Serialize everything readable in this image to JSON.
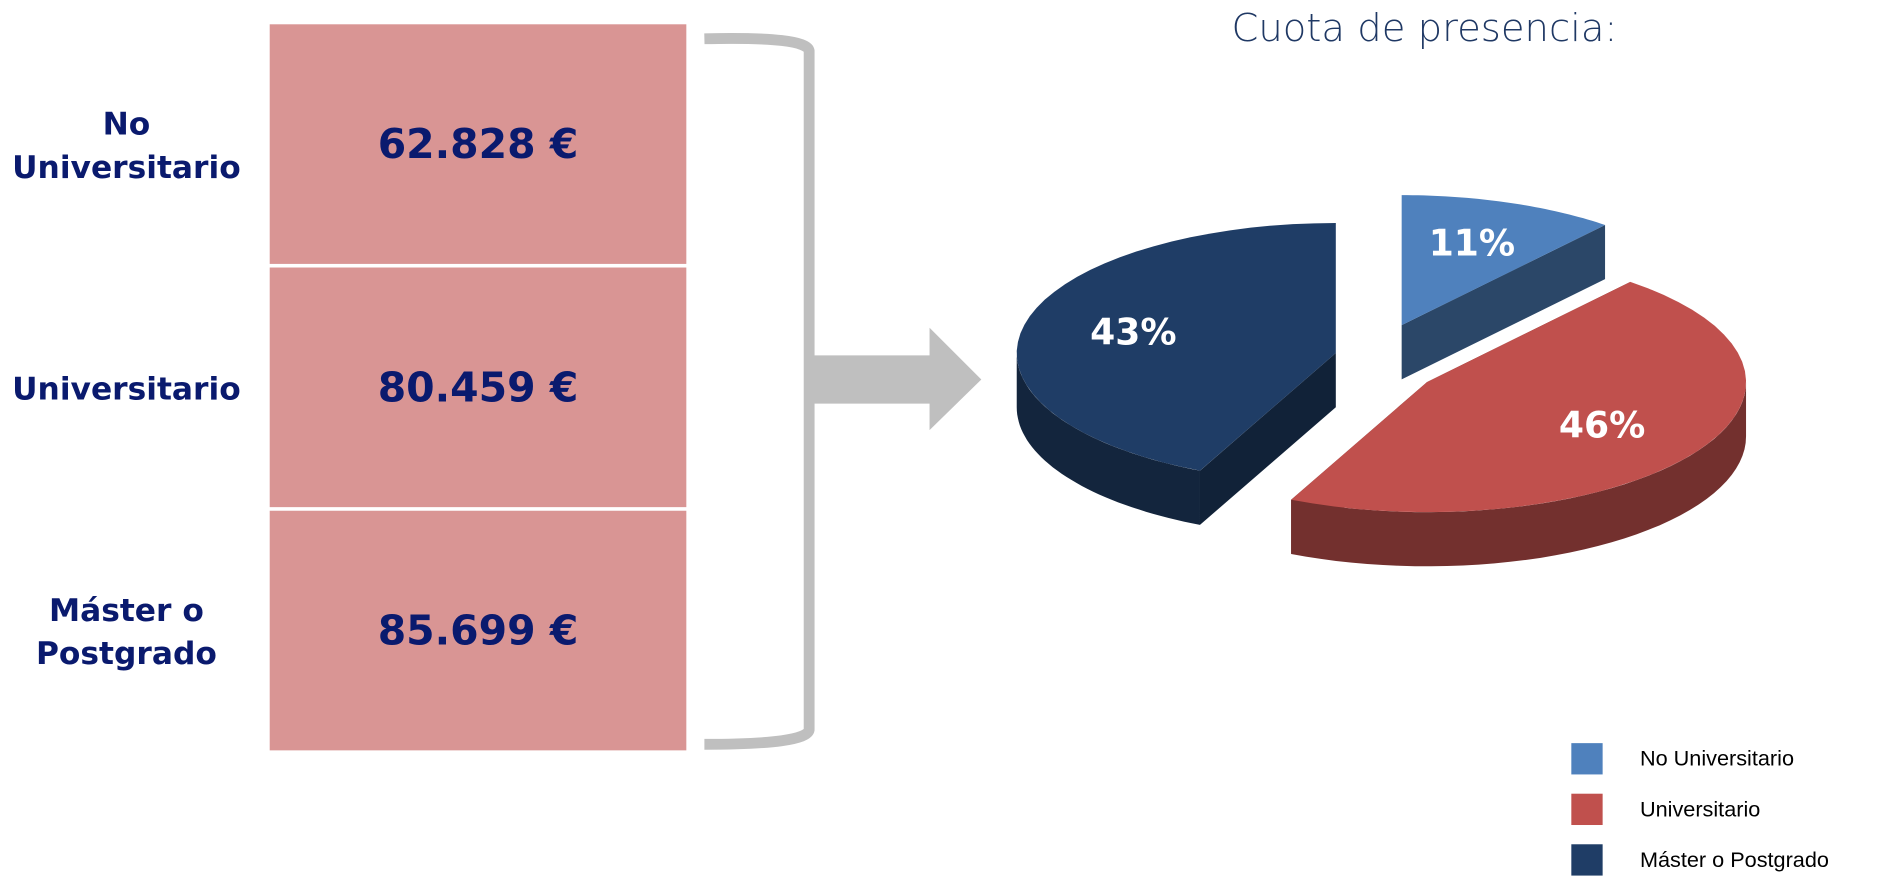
{
  "salaries": {
    "rows": [
      {
        "label": "No Universitario",
        "value": "62.828 €"
      },
      {
        "label": "Universitario",
        "value": "80.459 €"
      },
      {
        "label": "Máster o Postgrado",
        "value": "85.699 €"
      }
    ]
  },
  "chart_data": {
    "type": "pie",
    "title": "Cuota de presencia:",
    "categories": [
      "No Universitario",
      "Universitario",
      "Máster o Postgrado"
    ],
    "values": [
      11,
      46,
      43
    ],
    "value_labels": [
      "11%",
      "46%",
      "43%"
    ],
    "colors": [
      "#4f81bd",
      "#c0504d",
      "#1f3d66"
    ],
    "legend": "bottom-right"
  }
}
